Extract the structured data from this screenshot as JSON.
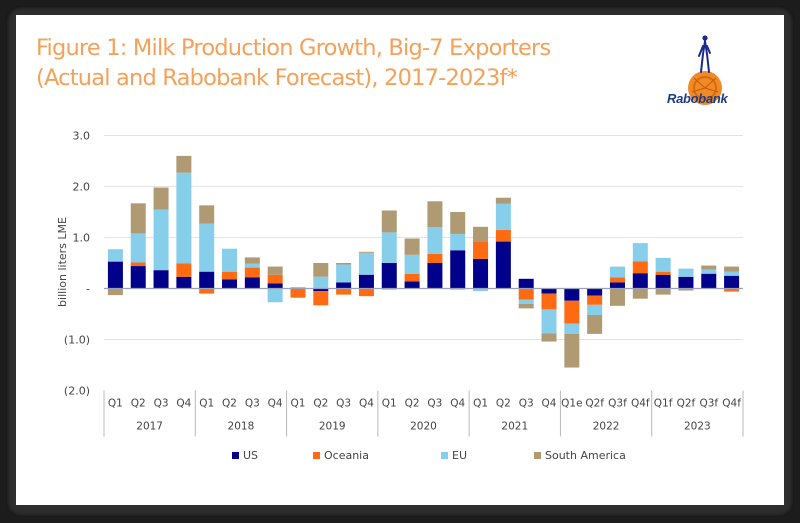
{
  "page": {
    "title_line1": "Figure 1: Milk Production Growth, Big-7 Exporters",
    "title_line2": "(Actual and Rabobank Forecast), 2017-2023f*",
    "logo_text": "Rabobank",
    "logo_icon": "rabobank-logo-icon"
  },
  "chart_data": {
    "type": "bar",
    "stacked": true,
    "title": "Figure 1: Milk Production Growth, Big-7 Exporters (Actual and Rabobank Forecast), 2017-2023f*",
    "xlabel": "",
    "ylabel": "billion liters LME",
    "ylim": [
      -2.0,
      3.0
    ],
    "yticks": [
      3.0,
      2.0,
      1.0,
      0,
      -1.0,
      -2.0
    ],
    "ytick_labels": [
      "3.0",
      "2.0",
      "1.0",
      "-",
      "(1.0)",
      "(2.0)"
    ],
    "grid": true,
    "legend_position": "bottom",
    "categories": [
      "Q1",
      "Q2",
      "Q3",
      "Q4",
      "Q1",
      "Q2",
      "Q3",
      "Q4",
      "Q1",
      "Q2",
      "Q3",
      "Q4",
      "Q1",
      "Q2",
      "Q3",
      "Q4",
      "Q1",
      "Q2",
      "Q3",
      "Q4",
      "Q1e",
      "Q2f",
      "Q3f",
      "Q4f",
      "Q1f",
      "Q2f",
      "Q3f",
      "Q4f"
    ],
    "groups": [
      "2017",
      "2018",
      "2019",
      "2020",
      "2021",
      "2022",
      "2023"
    ],
    "series": [
      {
        "name": "US",
        "color": "#00008b",
        "values": [
          0.52,
          0.44,
          0.36,
          0.23,
          0.33,
          0.18,
          0.22,
          0.1,
          0.0,
          -0.05,
          0.12,
          0.27,
          0.5,
          0.14,
          0.5,
          0.75,
          0.58,
          0.92,
          0.19,
          -0.1,
          -0.24,
          -0.14,
          0.12,
          0.3,
          0.27,
          0.23,
          0.29,
          0.25
        ]
      },
      {
        "name": "Oceania",
        "color": "#ff6a13",
        "values": [
          0.02,
          0.07,
          0.0,
          0.26,
          -0.1,
          0.15,
          0.19,
          0.17,
          -0.18,
          -0.28,
          -0.12,
          -0.15,
          -0.02,
          0.15,
          0.18,
          -0.02,
          0.34,
          0.23,
          -0.22,
          -0.31,
          -0.45,
          -0.18,
          0.1,
          0.23,
          0.06,
          0.0,
          0.0,
          -0.06
        ]
      },
      {
        "name": "EU",
        "color": "#87ceeb",
        "values": [
          0.23,
          0.57,
          1.19,
          1.78,
          0.94,
          0.45,
          0.08,
          -0.27,
          0.03,
          0.23,
          0.35,
          0.43,
          0.6,
          0.37,
          0.52,
          0.32,
          -0.05,
          0.51,
          -0.08,
          -0.47,
          -0.2,
          -0.2,
          0.21,
          0.36,
          0.27,
          0.16,
          0.08,
          0.08
        ]
      },
      {
        "name": "South America",
        "color": "#b09a74",
        "values": [
          -0.13,
          0.59,
          0.43,
          0.33,
          0.36,
          0.0,
          0.12,
          0.16,
          0.0,
          0.27,
          0.03,
          0.02,
          0.43,
          0.32,
          0.51,
          0.43,
          0.29,
          0.12,
          -0.09,
          -0.16,
          -0.66,
          -0.37,
          -0.34,
          -0.2,
          -0.12,
          -0.04,
          0.08,
          0.1
        ]
      }
    ]
  }
}
